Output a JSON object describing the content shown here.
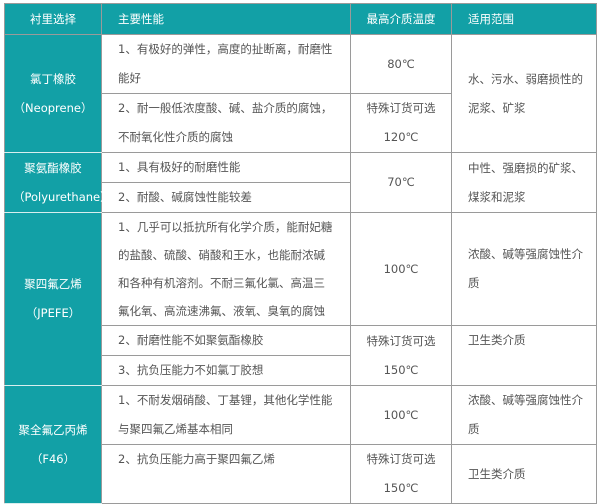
{
  "header": {
    "material": "衬里选择",
    "performance": "主要性能",
    "temperature": "最高介质温度",
    "scope": "适用范围"
  },
  "rows": [
    {
      "material": "氯丁橡胶\n（Neoprene）",
      "perf": [
        "1、有极好的弹性，高度的扯断离，耐磨性\n能好",
        "2、耐一般低浓度酸、碱、盐介质的腐蚀，\n不耐氧化性介质的腐蚀"
      ],
      "temp": [
        "80℃",
        "特殊订货可选\n120℃"
      ],
      "scope": [
        "水、污水、弱磨损性的\n泥浆、矿浆"
      ]
    },
    {
      "material": "聚氨酯橡胶\n（Polyurethane）",
      "perf": [
        "1、具有极好的耐磨性能",
        "2、耐酸、碱腐蚀性能较差"
      ],
      "temp": [
        "70℃"
      ],
      "scope": [
        "中性、强磨损的矿浆、\n煤浆和泥浆"
      ]
    },
    {
      "material": "聚四氟乙烯\n（JPEFE）",
      "perf": [
        "1、几乎可以抵抗所有化学介质，能耐妃糖\n的盐酸、硫酸、硝酸和王水，也能耐浓碱\n和各种有机溶剂。不耐三氟化氯、高温三\n氟化氧、高流速沸氟、液氧、臭氧的腐蚀",
        "2、耐磨性能不如聚氨酯橡胶",
        "3、抗负压能力不如氯丁胶想"
      ],
      "temp": [
        "100℃",
        "特殊订货可选\n150℃"
      ],
      "scope": [
        "浓酸、碱等强腐蚀性介\n质",
        "卫生类介质"
      ]
    },
    {
      "material": "聚全氟乙丙烯\n（F46）",
      "perf": [
        "1、不耐发烟硝酸、丁基锂，其他化学性能\n与聚四氟乙烯基本相同",
        "2、抗负压能力高于聚四氟乙烯"
      ],
      "temp": [
        "100℃",
        "特殊订货可选\n150℃"
      ],
      "scope": [
        "浓酸、碱等强腐蚀性介\n质",
        "卫生类介质"
      ]
    }
  ]
}
